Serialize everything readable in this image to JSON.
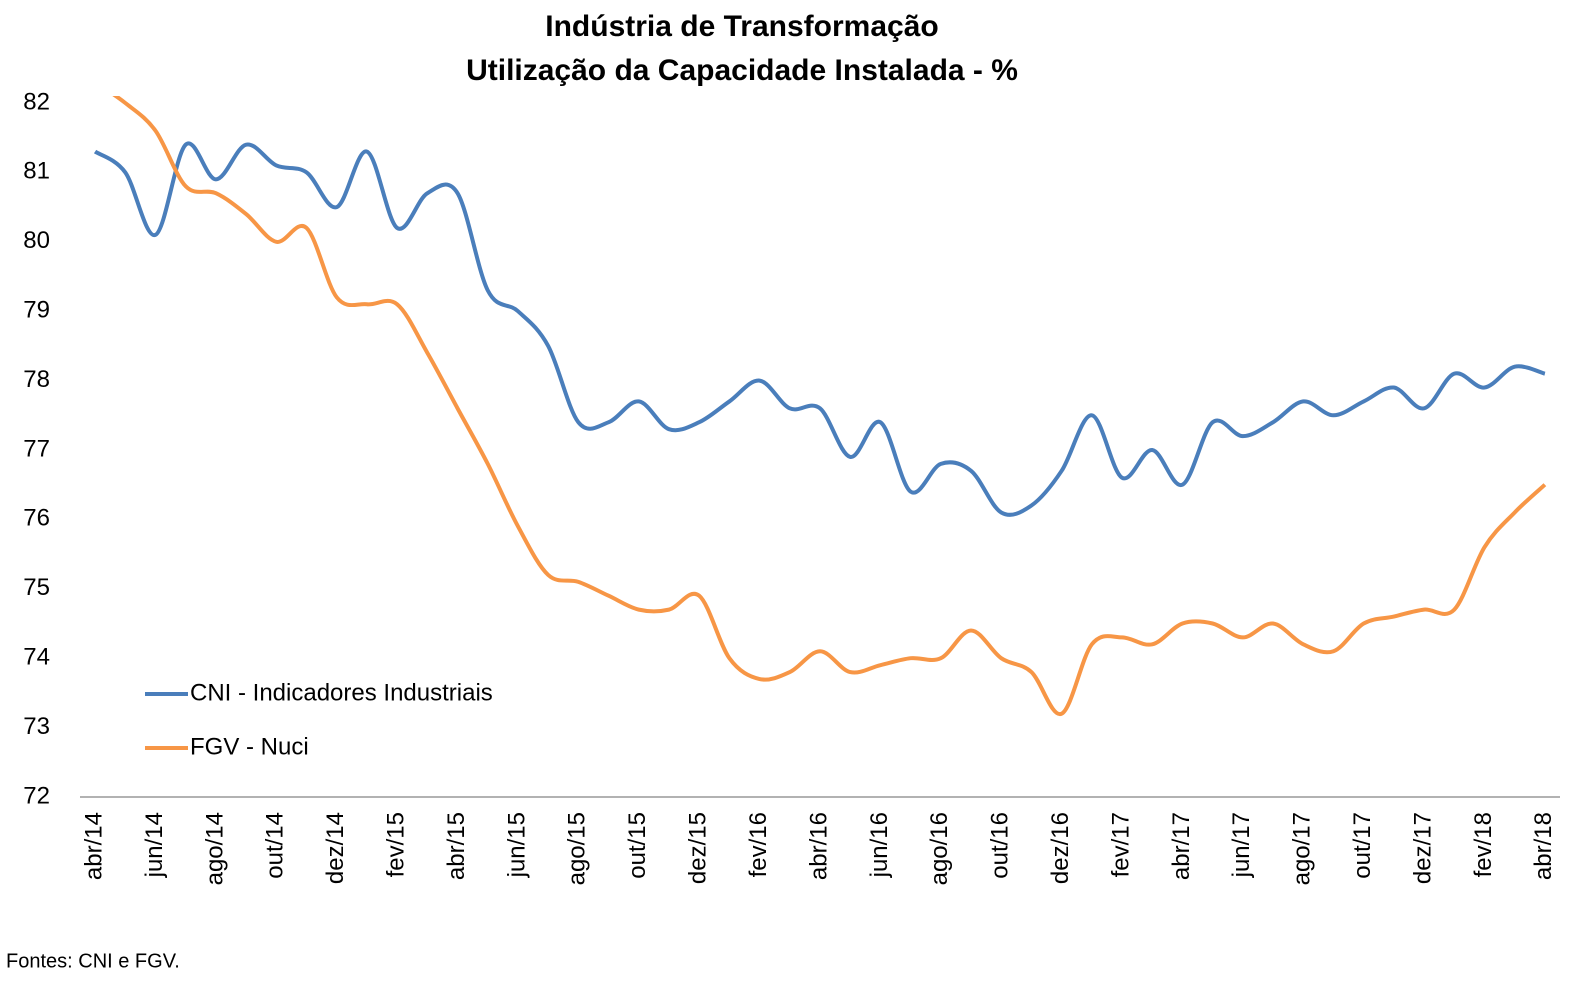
{
  "chart_data": {
    "type": "line",
    "title": "Indústria de Transformação",
    "subtitle": "Utilização da Capacidade Instalada - %",
    "source": "Fontes: CNI e FGV.",
    "categories": [
      "abr/14",
      null,
      "jun/14",
      null,
      "ago/14",
      null,
      "out/14",
      null,
      "dez/14",
      null,
      "fev/15",
      null,
      "abr/15",
      null,
      "jun/15",
      null,
      "ago/15",
      null,
      "out/15",
      null,
      "dez/15",
      null,
      "fev/16",
      null,
      "abr/16",
      null,
      "jun/16",
      null,
      "ago/16",
      null,
      "out/16",
      null,
      "dez/16",
      null,
      "fev/17",
      null,
      "abr/17",
      null,
      "jun/17",
      null,
      "ago/17",
      null,
      "out/17",
      null,
      "dez/17",
      null,
      "fev/18",
      null,
      "abr/18"
    ],
    "series": [
      {
        "name": "CNI - Indicadores Industriais",
        "color": "#4a7ebb",
        "values": [
          81.3,
          81.0,
          80.1,
          81.4,
          80.9,
          81.4,
          81.1,
          81.0,
          80.5,
          81.3,
          80.2,
          80.7,
          80.7,
          79.3,
          79.0,
          78.5,
          77.4,
          77.4,
          77.7,
          77.3,
          77.4,
          77.7,
          78.0,
          77.6,
          77.6,
          76.9,
          77.4,
          76.4,
          76.8,
          76.7,
          76.1,
          76.2,
          76.7,
          77.5,
          76.6,
          77.0,
          76.5,
          77.4,
          77.2,
          77.4,
          77.7,
          77.5,
          77.7,
          77.9,
          77.6,
          78.1,
          77.9,
          78.2,
          78.1
        ]
      },
      {
        "name": "FGV - Nuci",
        "color": "#f79646",
        "values": [
          82.3,
          82.0,
          81.6,
          80.8,
          80.7,
          80.4,
          80.0,
          80.2,
          79.2,
          79.1,
          79.1,
          78.4,
          77.6,
          76.8,
          75.9,
          75.2,
          75.1,
          74.9,
          74.7,
          74.7,
          74.9,
          74.0,
          73.7,
          73.8,
          74.1,
          73.8,
          73.9,
          74.0,
          74.0,
          74.4,
          74.0,
          73.8,
          73.2,
          74.2,
          74.3,
          74.2,
          74.5,
          74.5,
          74.3,
          74.5,
          74.2,
          74.1,
          74.5,
          74.6,
          74.7,
          74.7,
          75.6,
          76.1,
          76.5
        ]
      }
    ],
    "ylim": [
      72,
      82
    ],
    "yticks": [
      72,
      73,
      74,
      75,
      76,
      77,
      78,
      79,
      80,
      81,
      82
    ],
    "grid": false,
    "legend": "lower left"
  }
}
